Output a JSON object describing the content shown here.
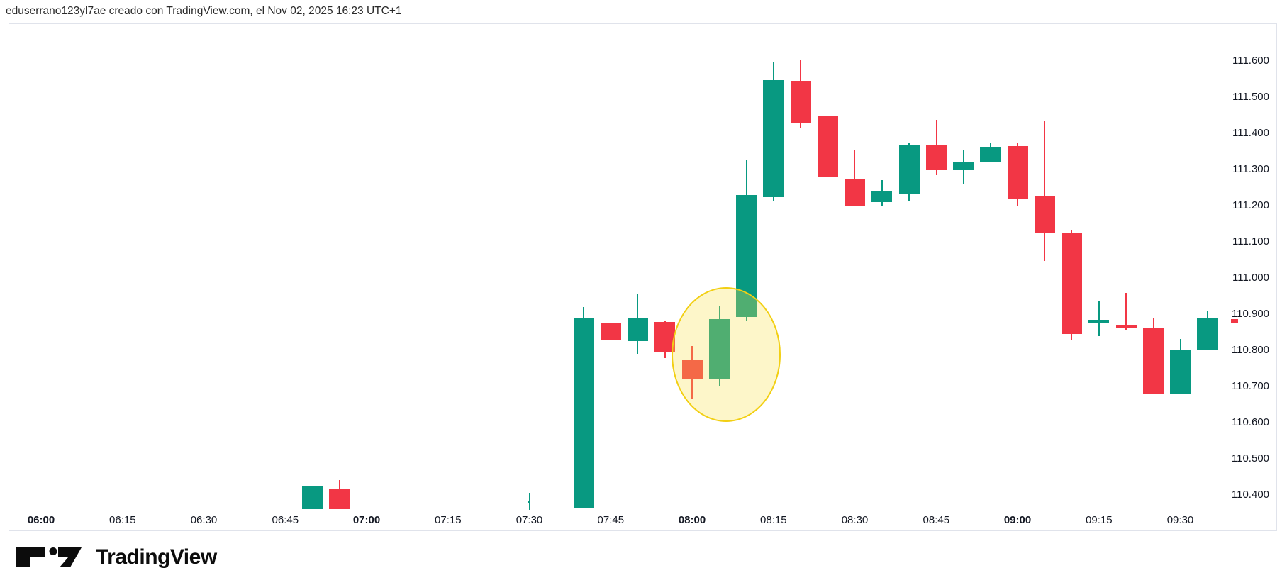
{
  "header": {
    "attribution": "eduserrano123yl7ae creado con TradingView.com, el Nov 02, 2025 16:23 UTC+1"
  },
  "footer": {
    "logo_text": "TradingView"
  },
  "colors": {
    "up": "#089981",
    "down": "#f23645",
    "panel_border": "#e0e3eb",
    "axis_text": "#131722",
    "highlight_fill": "rgba(247,224,75,0.30)",
    "highlight_stroke": "#f2cf13"
  },
  "chart_data": {
    "type": "candlestick",
    "title": "",
    "timeframe_minutes": 5,
    "grid": "off",
    "x_axis": {
      "labels": [
        "06:00",
        "06:15",
        "06:30",
        "06:45",
        "07:00",
        "07:15",
        "07:30",
        "07:45",
        "08:00",
        "08:15",
        "08:30",
        "08:45",
        "09:00",
        "09:15",
        "09:30"
      ],
      "bold_suffix": ":00"
    },
    "y_axis": {
      "labels": [
        "111.600",
        "111.500",
        "111.400",
        "111.300",
        "111.200",
        "111.100",
        "111.000",
        "110.900",
        "110.800",
        "110.700",
        "110.600",
        "110.500",
        "110.400"
      ],
      "min": 110.35,
      "max": 111.62,
      "side": "right"
    },
    "candles": [
      {
        "t": "06:50",
        "o": 110.36,
        "h": 110.425,
        "l": 110.36,
        "c": 110.425
      },
      {
        "t": "06:55",
        "o": 110.415,
        "h": 110.44,
        "l": 110.36,
        "c": 110.36
      },
      {
        "t": "07:30",
        "o": 110.378,
        "h": 110.405,
        "l": 110.358,
        "c": 110.382,
        "w": 3
      },
      {
        "t": "07:40",
        "o": 110.362,
        "h": 110.92,
        "l": 110.362,
        "c": 110.89
      },
      {
        "t": "07:45",
        "o": 110.876,
        "h": 110.912,
        "l": 110.754,
        "c": 110.827
      },
      {
        "t": "07:50",
        "o": 110.825,
        "h": 110.956,
        "l": 110.79,
        "c": 110.888
      },
      {
        "t": "07:55",
        "o": 110.878,
        "h": 110.882,
        "l": 110.778,
        "c": 110.795
      },
      {
        "t": "08:00",
        "o": 110.772,
        "h": 110.811,
        "l": 110.664,
        "c": 110.721
      },
      {
        "t": "08:05",
        "o": 110.719,
        "h": 110.921,
        "l": 110.701,
        "c": 110.886
      },
      {
        "t": "08:10",
        "o": 110.892,
        "h": 111.325,
        "l": 110.88,
        "c": 111.229
      },
      {
        "t": "08:15",
        "o": 111.223,
        "h": 111.597,
        "l": 111.213,
        "c": 111.546
      },
      {
        "t": "08:20",
        "o": 111.545,
        "h": 111.604,
        "l": 111.413,
        "c": 111.429
      },
      {
        "t": "08:25",
        "o": 111.448,
        "h": 111.466,
        "l": 111.28,
        "c": 111.28
      },
      {
        "t": "08:30",
        "o": 111.274,
        "h": 111.354,
        "l": 111.199,
        "c": 111.199
      },
      {
        "t": "08:35",
        "o": 111.209,
        "h": 111.27,
        "l": 111.197,
        "c": 111.239
      },
      {
        "t": "08:40",
        "o": 111.233,
        "h": 111.372,
        "l": 111.211,
        "c": 111.368
      },
      {
        "t": "08:45",
        "o": 111.368,
        "h": 111.437,
        "l": 111.284,
        "c": 111.297
      },
      {
        "t": "08:50",
        "o": 111.297,
        "h": 111.352,
        "l": 111.26,
        "c": 111.321
      },
      {
        "t": "08:55",
        "o": 111.319,
        "h": 111.374,
        "l": 111.319,
        "c": 111.363
      },
      {
        "t": "09:00",
        "o": 111.364,
        "h": 111.372,
        "l": 111.199,
        "c": 111.219
      },
      {
        "t": "09:05",
        "o": 111.227,
        "h": 111.435,
        "l": 111.046,
        "c": 111.123
      },
      {
        "t": "09:10",
        "o": 111.123,
        "h": 111.132,
        "l": 110.829,
        "c": 110.844
      },
      {
        "t": "09:15",
        "o": 110.876,
        "h": 110.934,
        "l": 110.838,
        "c": 110.884
      },
      {
        "t": "09:20",
        "o": 110.87,
        "h": 110.958,
        "l": 110.854,
        "c": 110.86
      },
      {
        "t": "09:25",
        "o": 110.862,
        "h": 110.89,
        "l": 110.68,
        "c": 110.68
      },
      {
        "t": "09:30",
        "o": 110.68,
        "h": 110.831,
        "l": 110.68,
        "c": 110.801
      },
      {
        "t": "09:35",
        "o": 110.801,
        "h": 110.91,
        "l": 110.801,
        "c": 110.888
      },
      {
        "t": "09:40",
        "o": 110.885,
        "h": 110.885,
        "l": 110.874,
        "c": 110.874,
        "w": 10
      }
    ],
    "highlight_ellipse": {
      "center_time": "08:06",
      "center_price": 110.792,
      "rx_minutes": 9.8,
      "ry_price": 0.182
    }
  }
}
